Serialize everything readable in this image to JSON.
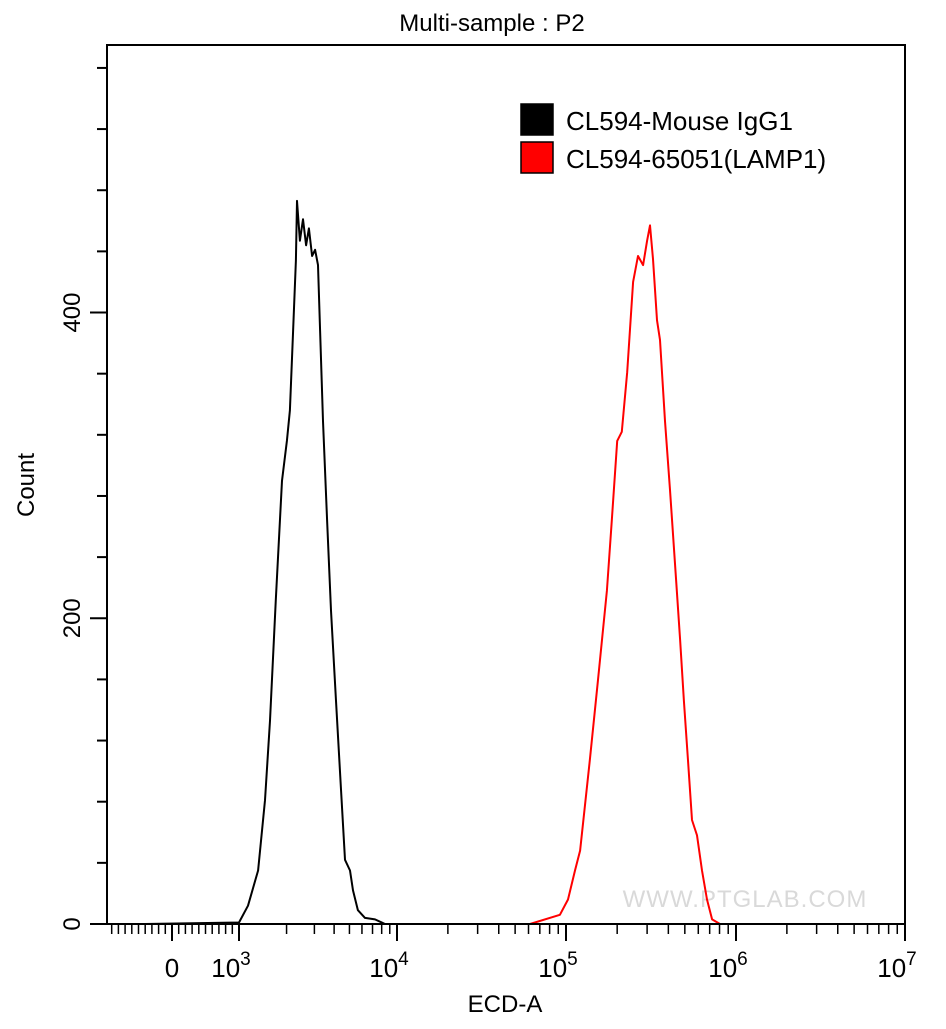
{
  "chart_data": {
    "type": "line",
    "title": "Multi-sample : P2",
    "xlabel": "ECD-A",
    "ylabel": "Count",
    "xscale": "biexponential",
    "xlim": [
      -970,
      10000000
    ],
    "ylim": [
      0,
      575
    ],
    "x_ticks": [
      {
        "value": 0,
        "base": "0",
        "exp": ""
      },
      {
        "value": 1000,
        "base": "10",
        "exp": "3"
      },
      {
        "value": 10000,
        "base": "10",
        "exp": "4"
      },
      {
        "value": 100000,
        "base": "10",
        "exp": "5"
      },
      {
        "value": 1000000,
        "base": "10",
        "exp": "6"
      },
      {
        "value": 10000000,
        "base": "10",
        "exp": "7"
      }
    ],
    "y_ticks": [
      0,
      200,
      400
    ],
    "y_minor_step": 40,
    "grid": false,
    "legend_position": "top-right",
    "series": [
      {
        "name": "CL594-Mouse IgG1",
        "color": "#000000",
        "x": [
          -400,
          1000,
          1140,
          1320,
          1460,
          1570,
          1710,
          1870,
          2010,
          2100,
          2200,
          2290,
          2330,
          2430,
          2540,
          2660,
          2770,
          2900,
          3030,
          3160,
          3260,
          3400,
          3610,
          3820,
          4110,
          4420,
          4690,
          5040,
          5270,
          5660,
          6270,
          7260,
          8400
        ],
        "y": [
          0,
          1,
          12,
          35,
          81,
          133,
          212,
          290,
          316,
          336,
          388,
          434,
          473,
          447,
          461,
          444,
          455,
          437,
          441,
          431,
          388,
          329,
          264,
          205,
          146,
          88,
          42,
          35,
          22,
          9,
          4,
          3,
          0
        ]
      },
      {
        "name": "CL594-65051(LAMP1)",
        "color": "#ff0000",
        "x": [
          61200,
          92000,
          102800,
          113000,
          121000,
          138000,
          154000,
          174000,
          186000,
          200000,
          213000,
          229000,
          248000,
          265000,
          284000,
          300000,
          312000,
          325000,
          343000,
          357000,
          382000,
          409000,
          444000,
          469000,
          494000,
          522000,
          551000,
          590000,
          631000,
          675000,
          723000,
          805000
        ],
        "y": [
          0,
          6,
          16,
          35,
          48,
          107,
          159,
          218,
          264,
          316,
          322,
          361,
          420,
          437,
          431,
          447,
          457,
          435,
          395,
          382,
          329,
          284,
          225,
          186,
          146,
          107,
          68,
          58,
          35,
          16,
          3,
          0
        ]
      }
    ]
  },
  "watermark": "WWW.PTGLAB.COM"
}
